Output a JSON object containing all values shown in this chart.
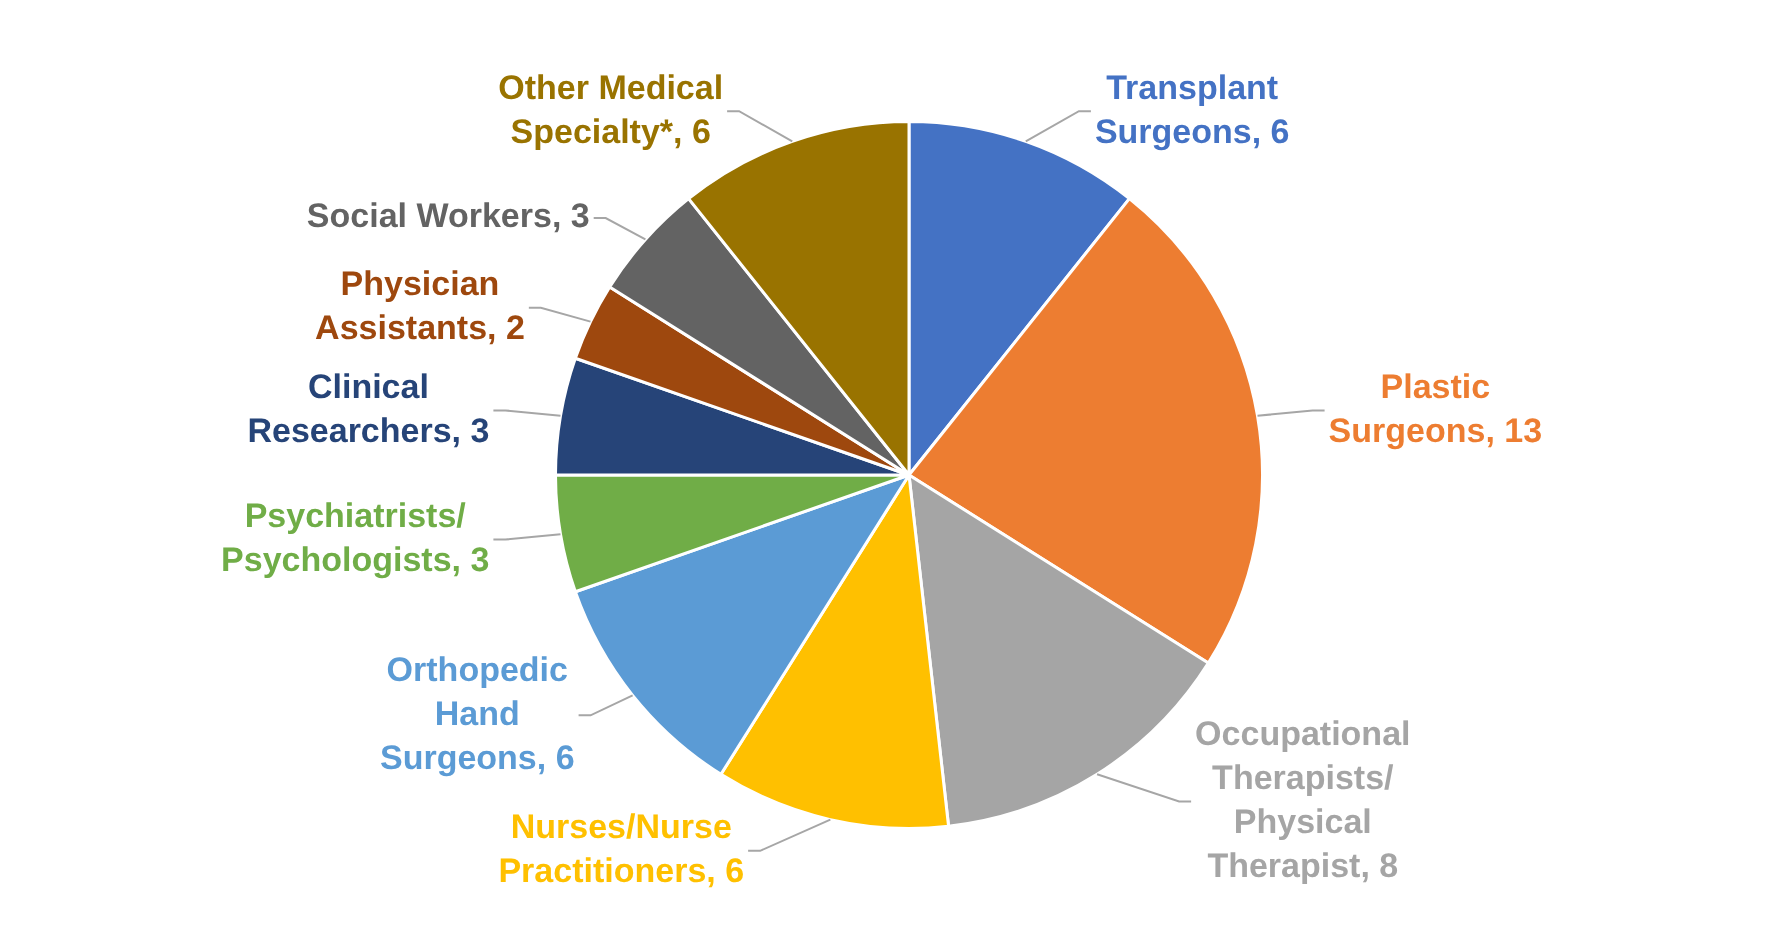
{
  "chart_data": {
    "type": "pie",
    "categories": [
      "Transplant Surgeons",
      "Plastic Surgeons",
      "Occupational Therapists/ Physical Therapist",
      "Nurses/Nurse Practitioners",
      "Orthopedic Hand Surgeons",
      "Psychiatrists/ Psychologists",
      "Clinical Researchers",
      "Physician Assistants",
      "Social Workers",
      "Other Medical Specialty*"
    ],
    "values": [
      6,
      13,
      8,
      6,
      6,
      3,
      3,
      2,
      3,
      6
    ],
    "value_labels": [
      ", 6",
      ", 13",
      ", 8",
      ", 6",
      ", 6",
      ", 3",
      ", 3",
      ", 2",
      ", 3",
      ", 6"
    ],
    "colors": [
      "#4472c4",
      "#ed7d31",
      "#a5a5a5",
      "#ffc000",
      "#5b9bd5",
      "#70ad47",
      "#264478",
      "#9e480e",
      "#636363",
      "#997300"
    ],
    "legend": false
  }
}
